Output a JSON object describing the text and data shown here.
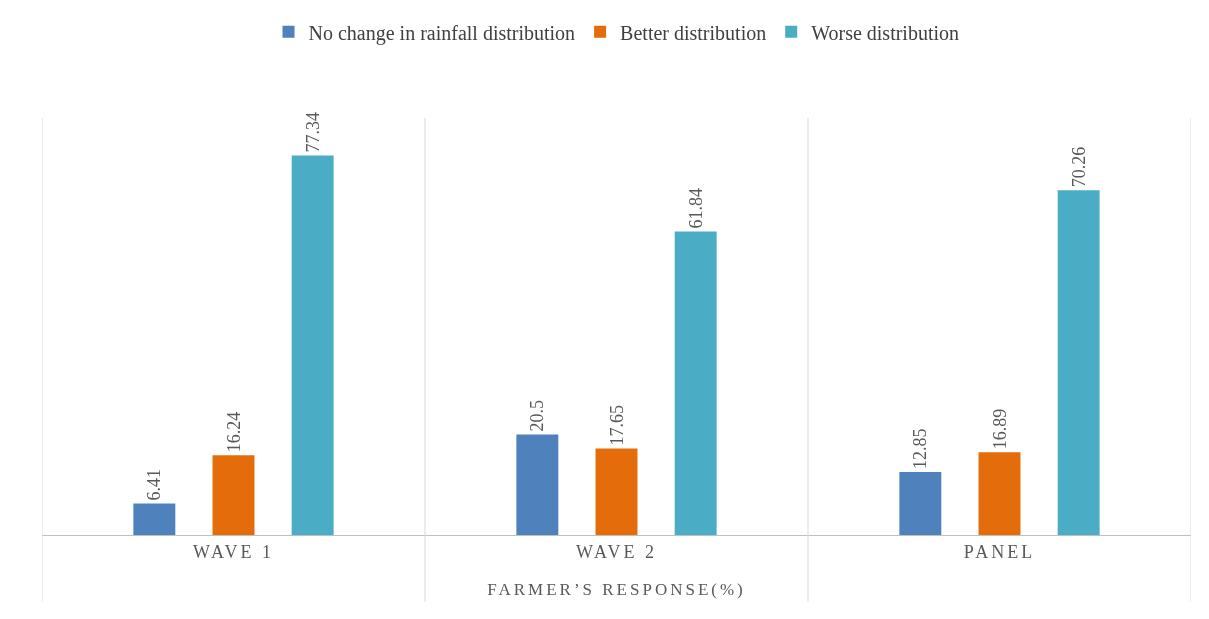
{
  "chart_data": {
    "type": "bar",
    "xlabel": "FARMER’S RESPONSE(%)",
    "categories": [
      "WAVE 1",
      "WAVE 2",
      "PANEL"
    ],
    "series": [
      {
        "name": "No change in rainfall distribution",
        "color": "#4f81bd",
        "values": [
          6.41,
          20.5,
          12.85
        ]
      },
      {
        "name": "Better distribution",
        "color": "#e46c0a",
        "values": [
          16.24,
          17.65,
          16.89
        ]
      },
      {
        "name": "Worse distribution",
        "color": "#4bacc6",
        "values": [
          77.34,
          61.84,
          70.26
        ]
      }
    ],
    "ylim": [
      0,
      85
    ],
    "tick_labels": "x",
    "data_labels": true,
    "grid": "x",
    "legend": "top"
  }
}
